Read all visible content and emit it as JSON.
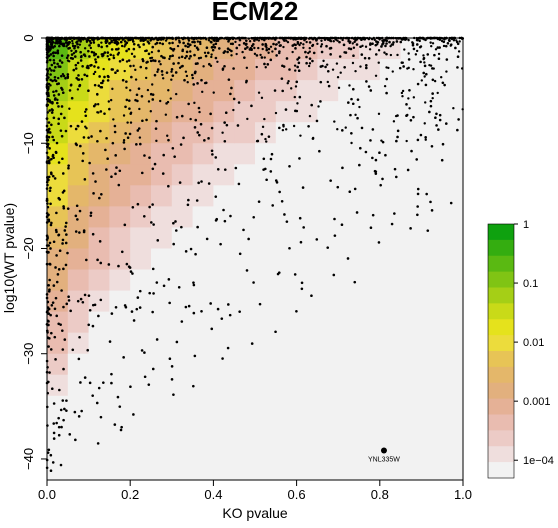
{
  "chart_data": {
    "type": "heatmap",
    "title": "ECM22",
    "xlabel": "KO pvalue",
    "ylabel": "log10(WT pvalue)",
    "xlim": [
      0,
      1
    ],
    "ylim": [
      -42,
      0
    ],
    "x_ticks": [
      "0.0",
      "0.2",
      "0.4",
      "0.6",
      "0.8",
      "1.0"
    ],
    "y_ticks": [
      "0",
      "−10",
      "−20",
      "−30",
      "−40"
    ],
    "grid": false,
    "legend": {
      "position": "right",
      "labels": [
        "1",
        "0.1",
        "0.01",
        "0.001",
        "1e−04"
      ],
      "colors": [
        "#0fa10f",
        "#34ad10",
        "#5ab912",
        "#80c414",
        "#a5cf16",
        "#c9da18",
        "#e5e21c",
        "#ecdc3c",
        "#e7c456",
        "#e4b76a",
        "#e2b07e",
        "#e5b196",
        "#e9bcb0",
        "#eccbc6",
        "#efdedd",
        "#f2f2f2"
      ],
      "min": 5e-05,
      "max": 1
    },
    "heatmap_density_model": "log10(density) = -4.4 + 4.4 * max(0, 1 - (KO_pvalue/0.95)^0.55 - (|log10_WT_pvalue|/42)^1.0)",
    "annotations": [
      {
        "label": "YNL335W",
        "x": 0.81,
        "y": -39.2
      }
    ],
    "points_description": "dense cloud of gene points concentrated near KO pvalue 0 and log10(WT pvalue) near 0, thinning toward high KO p and very negative WT p"
  }
}
